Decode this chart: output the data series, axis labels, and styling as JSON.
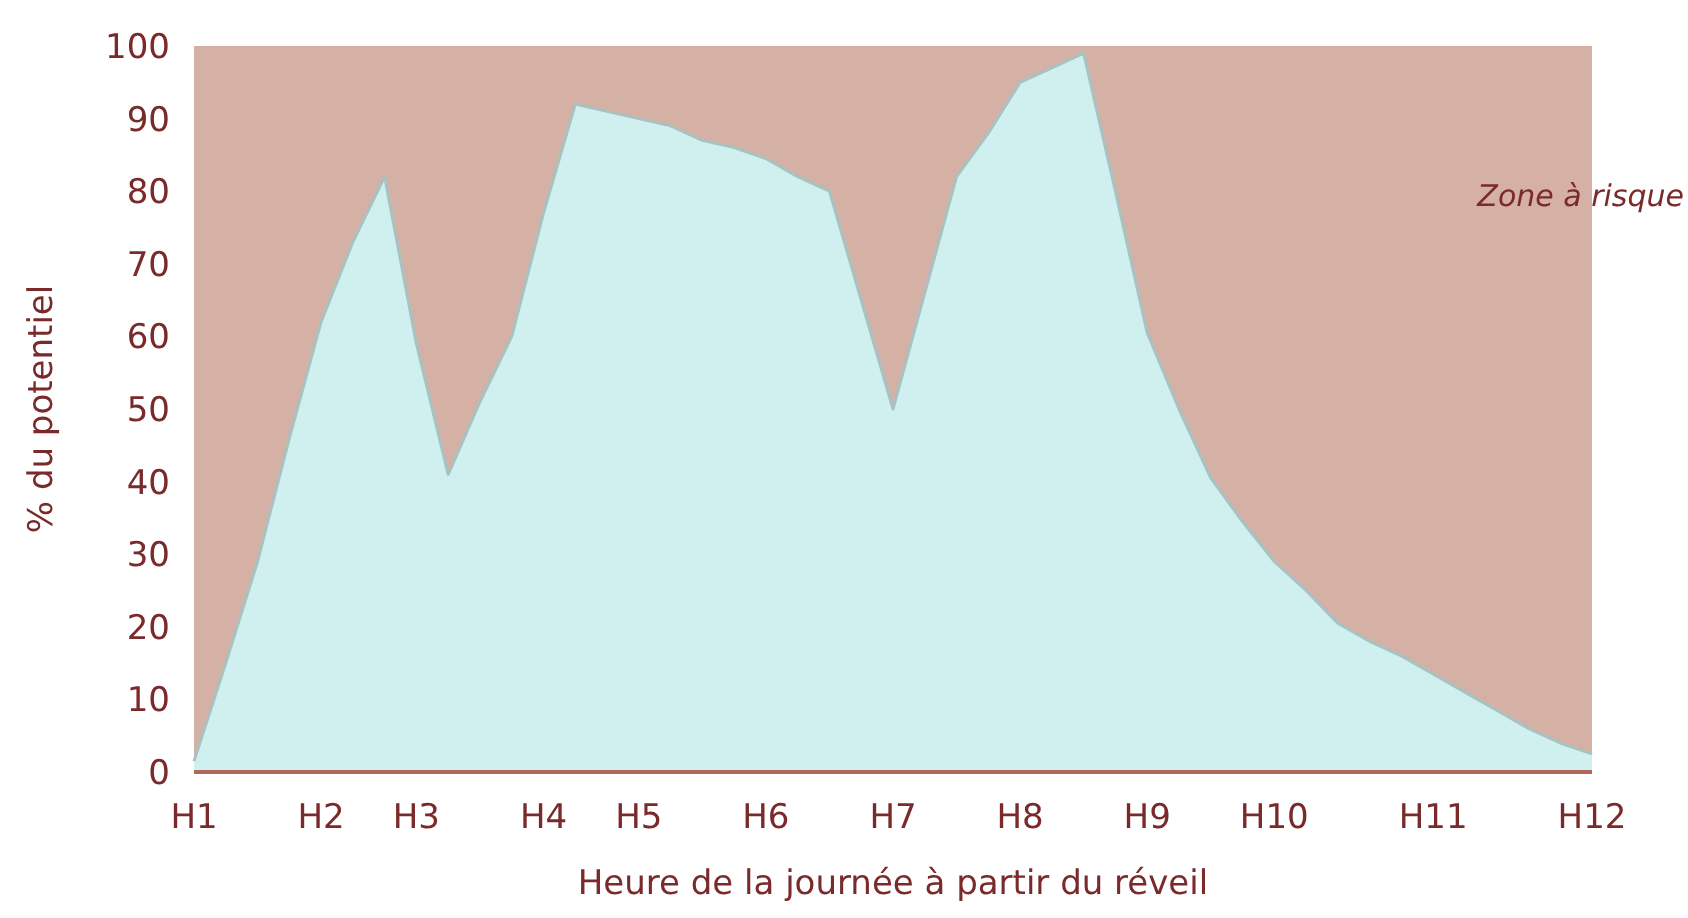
{
  "chart_data": {
    "type": "area",
    "xlabel": "Heure de la journée à partir du réveil",
    "ylabel": "% du potentiel",
    "categories": [
      "H1",
      null,
      null,
      null,
      "H2",
      null,
      null,
      "H3",
      null,
      null,
      null,
      "H4",
      null,
      null,
      "H5",
      null,
      null,
      null,
      "H6",
      null,
      null,
      null,
      "H7",
      null,
      null,
      null,
      "H8",
      null,
      null,
      null,
      "H9",
      null,
      null,
      null,
      "H10",
      null,
      null,
      null,
      null,
      "H11",
      null,
      null,
      null,
      null,
      "H12"
    ],
    "ylim": [
      0,
      100
    ],
    "yticks": [
      0,
      10,
      20,
      30,
      40,
      50,
      60,
      70,
      80,
      90,
      100
    ],
    "bands": [
      {
        "axis": "y",
        "from": 0,
        "to": 100,
        "label": "Zone à risque",
        "color": "#d4b0a5"
      }
    ],
    "series": [
      {
        "color": "#cff0ee",
        "values": [
          1.5,
          15,
          29,
          46,
          62,
          73,
          82,
          59,
          41,
          51,
          60,
          77,
          92,
          91,
          90,
          89,
          87,
          86,
          84.5,
          82,
          80,
          65,
          50,
          66,
          82,
          88,
          95,
          97,
          99,
          80,
          60.5,
          50,
          40.5,
          34.5,
          29,
          25,
          20.5,
          18,
          16,
          13.5,
          11,
          8.5,
          6,
          4,
          2.5
        ]
      }
    ]
  }
}
